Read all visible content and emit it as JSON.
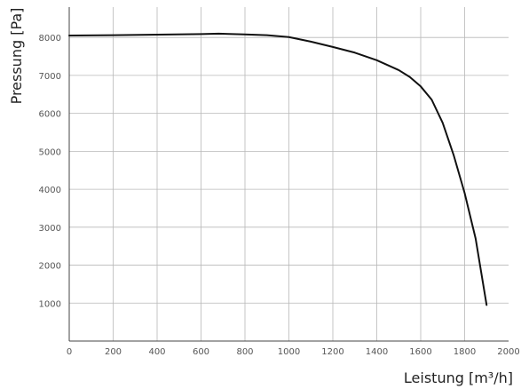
{
  "chart_data": {
    "type": "line",
    "title": "",
    "xlabel": "Leistung [m³/h]",
    "ylabel": "Pressung [Pa]",
    "xlim": [
      0,
      2000
    ],
    "ylim": [
      0,
      8800
    ],
    "grid": true,
    "x_ticks": [
      0,
      200,
      400,
      600,
      800,
      1000,
      1200,
      1400,
      1600,
      1800,
      2000
    ],
    "y_ticks": [
      1000,
      2000,
      3000,
      4000,
      5000,
      6000,
      7000,
      8000
    ],
    "x_tick_labels": [
      "0",
      "200",
      "400",
      "600",
      "800",
      "1000",
      "1200",
      "1400",
      "1600",
      "1800",
      "2000"
    ],
    "y_tick_labels": [
      "1000",
      "2000",
      "3000",
      "4000",
      "5000",
      "6000",
      "7000",
      "8000"
    ],
    "series": [
      {
        "color": "#111111",
        "x": [
          0,
          200,
          400,
          600,
          680,
          800,
          900,
          1000,
          1100,
          1200,
          1300,
          1400,
          1500,
          1550,
          1600,
          1650,
          1700,
          1750,
          1800,
          1850,
          1900
        ],
        "y": [
          8050,
          8060,
          8075,
          8090,
          8100,
          8080,
          8060,
          8010,
          7890,
          7750,
          7600,
          7400,
          7140,
          6960,
          6710,
          6360,
          5750,
          4900,
          3900,
          2700,
          950
        ]
      }
    ]
  }
}
